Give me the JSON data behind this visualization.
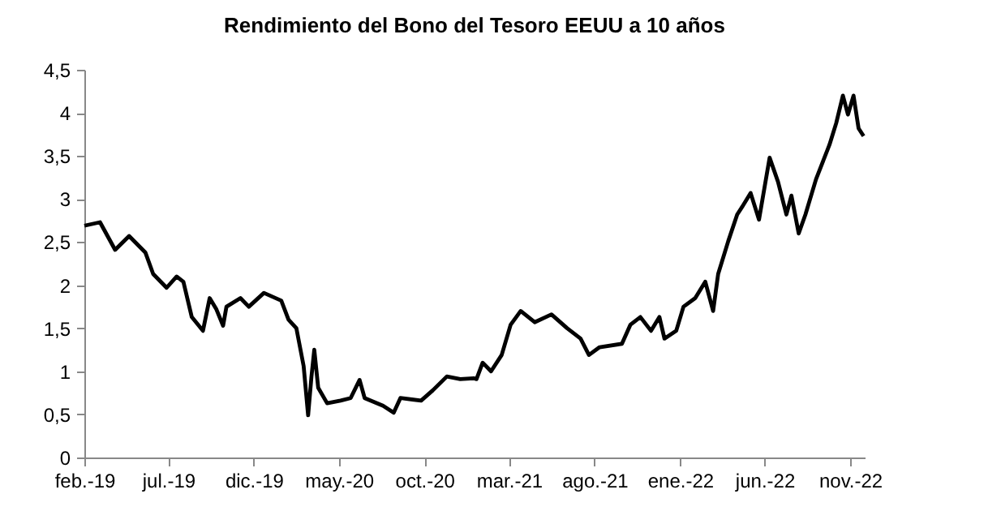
{
  "chart_data": {
    "type": "line",
    "title": "Rendimiento del Bono del Tesoro EEUU a 10 años",
    "x": [
      "2019-02-01",
      "2019-03-01",
      "2019-03-28",
      "2019-04-22",
      "2019-05-21",
      "2019-06-04",
      "2019-06-28",
      "2019-07-16",
      "2019-07-28",
      "2019-08-12",
      "2019-09-01",
      "2019-09-13",
      "2019-09-25",
      "2019-10-07",
      "2019-10-13",
      "2019-11-07",
      "2019-11-22",
      "2019-12-19",
      "2020-01-19",
      "2020-02-01",
      "2020-02-15",
      "2020-02-28",
      "2020-03-07",
      "2020-03-13",
      "2020-03-18",
      "2020-03-25",
      "2020-04-10",
      "2020-05-04",
      "2020-05-22",
      "2020-06-07",
      "2020-06-16",
      "2020-07-19",
      "2020-08-07",
      "2020-08-19",
      "2020-09-25",
      "2020-10-16",
      "2020-11-10",
      "2020-12-04",
      "2020-12-28",
      "2021-01-02",
      "2021-01-13",
      "2021-01-28",
      "2021-02-16",
      "2021-03-04",
      "2021-03-22",
      "2021-04-16",
      "2021-05-16",
      "2021-06-13",
      "2021-07-07",
      "2021-07-22",
      "2021-08-10",
      "2021-09-19",
      "2021-10-04",
      "2021-10-22",
      "2021-11-10",
      "2021-11-25",
      "2021-12-04",
      "2021-12-25",
      "2022-01-07",
      "2022-01-28",
      "2022-02-15",
      "2022-03-01",
      "2022-03-10",
      "2022-03-28",
      "2022-04-13",
      "2022-04-22",
      "2022-05-07",
      "2022-05-22",
      "2022-06-10",
      "2022-06-25",
      "2022-07-10",
      "2022-07-19",
      "2022-08-01",
      "2022-08-13",
      "2022-09-01",
      "2022-09-25",
      "2022-10-07",
      "2022-10-19",
      "2022-10-28",
      "2022-11-07",
      "2022-11-16",
      "2022-11-25"
    ],
    "series": [
      {
        "color": "#000000",
        "values": [
          2.69,
          2.73,
          2.41,
          2.57,
          2.38,
          2.13,
          1.97,
          2.1,
          2.04,
          1.63,
          1.47,
          1.85,
          1.72,
          1.53,
          1.75,
          1.85,
          1.75,
          1.91,
          1.82,
          1.6,
          1.5,
          1.06,
          0.49,
          0.94,
          1.25,
          0.81,
          0.63,
          0.66,
          0.69,
          0.9,
          0.69,
          0.6,
          0.52,
          0.69,
          0.66,
          0.78,
          0.94,
          0.91,
          0.92,
          0.91,
          1.1,
          1.0,
          1.19,
          1.54,
          1.7,
          1.57,
          1.66,
          1.5,
          1.38,
          1.19,
          1.28,
          1.32,
          1.54,
          1.63,
          1.47,
          1.63,
          1.38,
          1.47,
          1.75,
          1.85,
          2.04,
          1.7,
          2.13,
          2.51,
          2.82,
          2.91,
          3.07,
          2.76,
          3.48,
          3.2,
          2.82,
          3.04,
          2.6,
          2.82,
          3.23,
          3.63,
          3.88,
          4.2,
          3.98,
          4.2,
          3.82,
          3.73
        ]
      }
    ],
    "xlim": [
      "2019-02-01",
      "2022-11-27"
    ],
    "xticks": [
      {
        "value": "2019-02-01",
        "label": "feb.-19"
      },
      {
        "value": "2019-07-01",
        "label": "jul.-19"
      },
      {
        "value": "2019-12-01",
        "label": "dic.-19"
      },
      {
        "value": "2020-05-01",
        "label": "may.-20"
      },
      {
        "value": "2020-10-01",
        "label": "oct.-20"
      },
      {
        "value": "2021-03-01",
        "label": "mar.-21"
      },
      {
        "value": "2021-08-01",
        "label": "ago.-21"
      },
      {
        "value": "2022-01-01",
        "label": "ene.-22"
      },
      {
        "value": "2022-06-01",
        "label": "jun.-22"
      },
      {
        "value": "2022-11-01",
        "label": "nov.-22"
      }
    ],
    "ylim": [
      0,
      4.5
    ],
    "yticks": [
      {
        "value": 0,
        "label": "0"
      },
      {
        "value": 0.5,
        "label": "0,5"
      },
      {
        "value": 1,
        "label": "1"
      },
      {
        "value": 1.5,
        "label": "1,5"
      },
      {
        "value": 2,
        "label": "2"
      },
      {
        "value": 2.5,
        "label": "2,5"
      },
      {
        "value": 3,
        "label": "3"
      },
      {
        "value": 3.5,
        "label": "3,5"
      },
      {
        "value": 4,
        "label": "4"
      },
      {
        "value": 4.5,
        "label": "4,5"
      }
    ],
    "grid": false,
    "legend": false,
    "marker": "none",
    "line_style": "solid"
  }
}
